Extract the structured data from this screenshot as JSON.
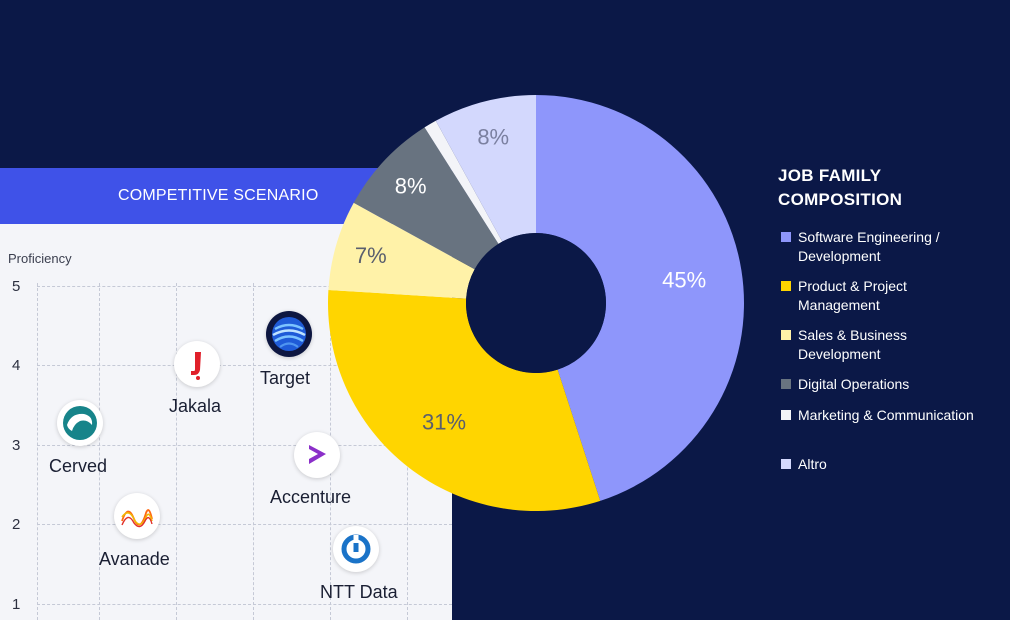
{
  "competitive_scenario": {
    "title": "COMPETITIVE SCENARIO",
    "y_axis_label": "Proficiency",
    "y_ticks": [
      "5",
      "4",
      "3",
      "2",
      "1"
    ],
    "companies": [
      {
        "name": "Target",
        "proficiency": 4.3,
        "icon": "target-globe-icon"
      },
      {
        "name": "Jakala",
        "proficiency": 4.0,
        "icon": "jakala-j-icon"
      },
      {
        "name": "Cerved",
        "proficiency": 3.2,
        "icon": "cerved-wave-icon"
      },
      {
        "name": "Accenture",
        "proficiency": 2.8,
        "icon": "accenture-chevron-icon"
      },
      {
        "name": "Avanade",
        "proficiency": 2.0,
        "icon": "avanade-wave-icon"
      },
      {
        "name": "NTT Data",
        "proficiency": 1.7,
        "icon": "ntt-data-ring-icon"
      }
    ]
  },
  "chart_data": {
    "type": "pie",
    "donut": true,
    "title": "JOB FAMILY COMPOSITION",
    "categories": [
      "Software Engineering / Development",
      "Product & Project Management",
      "Sales & Business Development",
      "Digital Operations",
      "Marketing & Communication",
      "Altro"
    ],
    "values": [
      45,
      31,
      7,
      8,
      1,
      8
    ],
    "labels": [
      "45%",
      "31%",
      "7%",
      "8%",
      "",
      "8%"
    ],
    "colors": [
      "#8e96fb",
      "#ffd500",
      "#fff2a8",
      "#687380",
      "#f3f4f8",
      "#d3d8fd"
    ],
    "label_colors": [
      "#ffffff",
      "#5a5f6e",
      "#5a5f6e",
      "#ffffff",
      "#5a5f6e",
      "#7b80a0"
    ],
    "legend_position": "right"
  },
  "legend": {
    "title": "JOB FAMILY COMPOSITION",
    "items": [
      {
        "label": "Software Engineering / Development",
        "color": "#8e96fb"
      },
      {
        "label": "Product & Project Management",
        "color": "#ffd500"
      },
      {
        "label": "Sales & Business Development",
        "color": "#fff2a8"
      },
      {
        "label": "Digital Operations",
        "color": "#687380"
      },
      {
        "label": "Marketing & Communication",
        "color": "#f3f4f8"
      },
      {
        "label": "Altro",
        "color": "#d3d8fd"
      }
    ]
  }
}
